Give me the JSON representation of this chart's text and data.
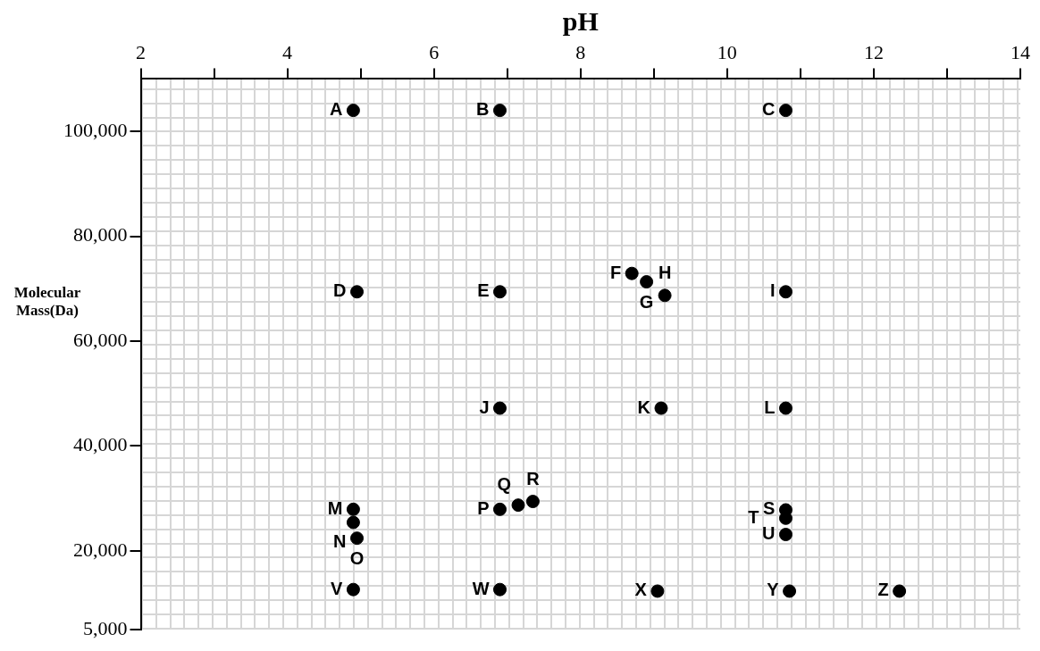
{
  "chart_data": {
    "type": "scatter",
    "xlabel": "pH",
    "ylabel": "Molecular Mass(Da)",
    "x": [
      4.9,
      6.9,
      10.8,
      4.95,
      6.9,
      8.7,
      8.9,
      9.15,
      10.8,
      6.9,
      9.1,
      10.8,
      4.9,
      4.9,
      4.95,
      6.9,
      7.15,
      7.35,
      10.8,
      10.8,
      10.8,
      4.9,
      6.9,
      9.05,
      10.85,
      12.35
    ],
    "series": [
      {
        "color": "#000000",
        "values": [
          104000,
          104000,
          104000,
          69400,
          69400,
          72900,
          71300,
          68700,
          69400,
          47200,
          47200,
          47200,
          27900,
          25400,
          22400,
          27900,
          28700,
          29400,
          27800,
          26200,
          23100,
          12600,
          12600,
          12300,
          12300,
          12300
        ]
      }
    ],
    "xlim": [
      2,
      14
    ],
    "xticks": [
      2,
      {
        "value": 3,
        "label": null
      },
      4,
      {
        "value": 5,
        "label": null
      },
      6,
      {
        "value": 7,
        "label": null
      },
      8,
      {
        "value": 9,
        "label": null
      },
      10,
      {
        "value": 11,
        "label": null
      },
      12,
      {
        "value": 13,
        "label": null
      },
      14
    ],
    "ylim": [
      5000,
      110000
    ],
    "yticks": [
      {
        "value": 5000,
        "label": "5,000"
      },
      {
        "value": 20000,
        "label": "20,000"
      },
      {
        "value": 40000,
        "label": "40,000"
      },
      {
        "value": 60000,
        "label": "60,000"
      },
      {
        "value": 80000,
        "label": "80,000"
      },
      {
        "value": 100000,
        "label": "100,000"
      }
    ],
    "marker": "circle",
    "legend": false,
    "annotations": [
      {
        "text": "A",
        "x": 4.9,
        "y": 104000
      },
      {
        "text": "B",
        "x": 6.9,
        "y": 104000
      },
      {
        "text": "C",
        "x": 10.8,
        "y": 104000
      },
      {
        "text": "D",
        "x": 4.95,
        "y": 69400
      },
      {
        "text": "E",
        "x": 6.9,
        "y": 69400
      },
      {
        "text": "F",
        "x": 8.7,
        "y": 72900
      },
      {
        "text": "G",
        "x": 8.9,
        "y": 71300
      },
      {
        "text": "H",
        "x": 9.15,
        "y": 68700
      },
      {
        "text": "I",
        "x": 10.8,
        "y": 69400
      },
      {
        "text": "J",
        "x": 6.9,
        "y": 47200
      },
      {
        "text": "K",
        "x": 9.1,
        "y": 47200
      },
      {
        "text": "L",
        "x": 10.8,
        "y": 47200
      },
      {
        "text": "M",
        "x": 4.9,
        "y": 27900
      },
      {
        "text": "N",
        "x": 4.9,
        "y": 25400
      },
      {
        "text": "O",
        "x": 4.95,
        "y": 22400
      },
      {
        "text": "P",
        "x": 6.9,
        "y": 27900
      },
      {
        "text": "Q",
        "x": 7.15,
        "y": 28700
      },
      {
        "text": "R",
        "x": 7.35,
        "y": 29400
      },
      {
        "text": "S",
        "x": 10.8,
        "y": 27800
      },
      {
        "text": "T",
        "x": 10.8,
        "y": 26200
      },
      {
        "text": "U",
        "x": 10.8,
        "y": 23100
      },
      {
        "text": "V",
        "x": 4.9,
        "y": 12600
      },
      {
        "text": "W",
        "x": 6.9,
        "y": 12600
      },
      {
        "text": "X",
        "x": 9.05,
        "y": 12300
      },
      {
        "text": "Y",
        "x": 10.85,
        "y": 12300
      },
      {
        "text": "Z",
        "x": 12.35,
        "y": 12300
      }
    ]
  }
}
